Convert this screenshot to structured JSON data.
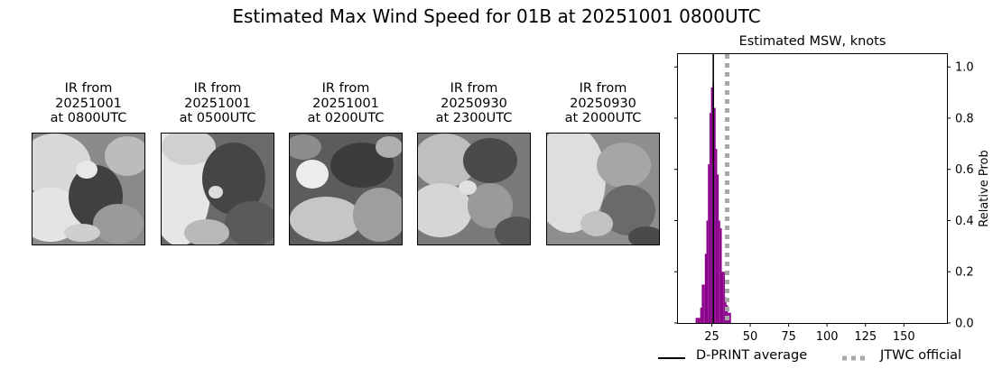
{
  "figure": {
    "title": "Estimated Max Wind Speed for 01B at 20251001 0800UTC"
  },
  "ir_panels": [
    {
      "title": "IR from\n20251001\nat 0800UTC",
      "tone": "cloud-dense-center"
    },
    {
      "title": "IR from\n20251001\nat 0500UTC",
      "tone": "cloud-left-heavy"
    },
    {
      "title": "IR from\n20251001\nat 0200UTC",
      "tone": "cloud-scattered"
    },
    {
      "title": "IR from\n20250930\nat 2300UTC",
      "tone": "cloud-mottled"
    },
    {
      "title": "IR from\n20250930\nat 2000UTC",
      "tone": "cloud-bright-left"
    }
  ],
  "chart_data": {
    "type": "bar",
    "title": "Estimated MSW, knots",
    "xlabel": "",
    "ylabel": "Relative Prob",
    "xlim": [
      3,
      178
    ],
    "ylim": [
      0,
      1.05
    ],
    "xticks": [
      25,
      50,
      75,
      100,
      125,
      150
    ],
    "yticks": [
      0.0,
      0.2,
      0.4,
      0.6,
      0.8,
      1.0
    ],
    "yticks_side": "right",
    "bin_width": 1,
    "x": [
      15,
      16,
      17,
      18,
      19,
      20,
      21,
      22,
      23,
      24,
      25,
      26,
      27,
      28,
      29,
      30,
      31,
      32,
      33,
      34,
      35,
      36,
      37
    ],
    "values": [
      0.02,
      0.02,
      0.02,
      0.06,
      0.15,
      0.15,
      0.27,
      0.4,
      0.62,
      0.82,
      0.92,
      0.94,
      0.84,
      0.68,
      0.58,
      0.4,
      0.37,
      0.2,
      0.2,
      0.1,
      0.07,
      0.04,
      0.04
    ],
    "bar_color": "#8b008b",
    "vlines": [
      {
        "name": "D-PRINT average",
        "x": 26,
        "style": "solid",
        "color": "#000000"
      },
      {
        "name": "JTWC official",
        "x": 35,
        "style": "dotted",
        "color": "#a9a9a9"
      }
    ],
    "legend_placement": "bottom"
  }
}
